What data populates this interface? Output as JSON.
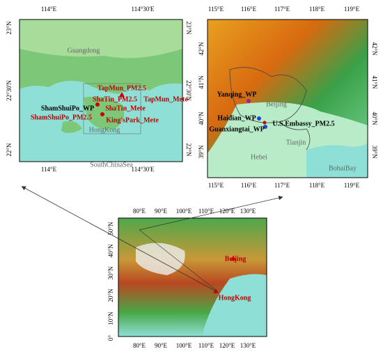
{
  "hong_kong_map": {
    "top_ticks": [
      "114°E",
      "114°30'E"
    ],
    "bottom_ticks": [
      "114°E",
      "114°30'E"
    ],
    "left_ticks": [
      "23°N",
      "22°30'N",
      "22°N"
    ],
    "right_ticks": [
      "23°N",
      "22°30'N",
      "22°N"
    ],
    "labels": [
      "Guangdong",
      "TapMun_PM2.5",
      "ShaTin_PM2.5",
      "TapMun_Mete",
      "ShamShuiPo_WP",
      "ShaTin_Mete",
      "ShamShuiPo_PM2.5",
      "King'sPark_Mete",
      "HongKong",
      "SouthChinaSea"
    ]
  },
  "beijing_map": {
    "top_ticks": [
      "115°E",
      "116°E",
      "117°E",
      "118°E",
      "119°E"
    ],
    "bottom_ticks": [
      "115°E",
      "116°E",
      "117°E",
      "118°E",
      "119°E"
    ],
    "left_ticks": [
      "42°N",
      "41°N",
      "40°N",
      "39°N"
    ],
    "right_ticks": [
      "42°N",
      "41°N",
      "40°N",
      "39°N"
    ],
    "labels": [
      "Yanqing_WP",
      "Beijing",
      "Haidian_WP",
      "U.S.Embassy_PM2.5",
      "Guanxiangtai_WP",
      "Tianjin",
      "Hebei",
      "BohaiBay"
    ]
  },
  "overview_map": {
    "top_ticks": [
      "80°E",
      "90°E",
      "100°E",
      "110°E",
      "120°E",
      "130°E"
    ],
    "bottom_ticks": [
      "80°E",
      "90°E",
      "100°E",
      "110°E",
      "120°E",
      "130°E"
    ],
    "left_ticks": [
      "50°N",
      "40°N",
      "30°N",
      "20°N",
      "10°N",
      "0°"
    ],
    "labels": [
      "Beijing",
      "HongKong"
    ]
  }
}
